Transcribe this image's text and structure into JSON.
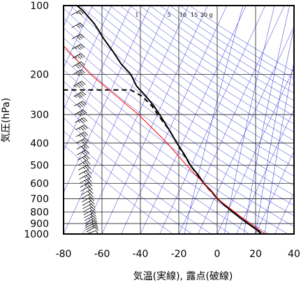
{
  "chart_data": {
    "type": "line",
    "xlabel": "気温(実線), 露点(破線)",
    "ylabel": "気圧(hPa)",
    "xlim": [
      -80,
      40
    ],
    "ylim": [
      1000,
      100
    ],
    "yscale": "log",
    "x_ticks": [
      "-80",
      "-60",
      "-40",
      "-20",
      "0",
      "20",
      "40"
    ],
    "x_tick_values": [
      -80,
      -60,
      -40,
      -20,
      0,
      20,
      40
    ],
    "y_ticks": [
      "100",
      "200",
      "300",
      "400",
      "500",
      "600",
      "700",
      "800",
      "900",
      "1000"
    ],
    "y_tick_values": [
      100,
      200,
      300,
      400,
      500,
      600,
      700,
      800,
      900,
      1000
    ],
    "mixing_ratio_labels": [
      "1",
      "5",
      "10",
      "15",
      "20",
      "g"
    ],
    "mixing_ratio_values": [
      1,
      5,
      10,
      15,
      20
    ],
    "grid": true,
    "series": [
      {
        "kind": "temperature",
        "style": "solid",
        "color": "#000000",
        "points": [
          [
            1000,
            23
          ],
          [
            975,
            22
          ],
          [
            950,
            20
          ],
          [
            925,
            18
          ],
          [
            900,
            16
          ],
          [
            850,
            12
          ],
          [
            800,
            8
          ],
          [
            750,
            4
          ],
          [
            700,
            0
          ],
          [
            650,
            -3
          ],
          [
            600,
            -7
          ],
          [
            550,
            -10
          ],
          [
            500,
            -14
          ],
          [
            450,
            -17
          ],
          [
            400,
            -21
          ],
          [
            350,
            -25
          ],
          [
            300,
            -30
          ],
          [
            275,
            -33
          ],
          [
            250,
            -37
          ],
          [
            225,
            -42
          ],
          [
            200,
            -45
          ],
          [
            180,
            -50
          ],
          [
            160,
            -54
          ],
          [
            140,
            -59
          ],
          [
            120,
            -64
          ],
          [
            105,
            -70
          ],
          [
            100,
            -73
          ]
        ]
      },
      {
        "kind": "dewpoint",
        "style": "dashed",
        "color": "#000000",
        "points": [
          [
            1000,
            23
          ],
          [
            950,
            20
          ],
          [
            900,
            16
          ],
          [
            850,
            12
          ],
          [
            800,
            8
          ],
          [
            700,
            0
          ],
          [
            600,
            -7
          ],
          [
            500,
            -14
          ],
          [
            400,
            -21
          ],
          [
            350,
            -25
          ],
          [
            300,
            -31
          ],
          [
            275,
            -34
          ],
          [
            250,
            -39
          ],
          [
            234,
            -45
          ],
          [
            234,
            -80
          ]
        ]
      },
      {
        "kind": "parcel",
        "style": "solid",
        "color": "#ff0000",
        "points": [
          [
            1000,
            25
          ],
          [
            900,
            17
          ],
          [
            800,
            9
          ],
          [
            700,
            0
          ],
          [
            600,
            -7
          ],
          [
            500,
            -16
          ],
          [
            400,
            -26
          ],
          [
            300,
            -41
          ],
          [
            200,
            -66
          ],
          [
            150,
            -80
          ]
        ]
      }
    ],
    "wind_barbs": [
      {
        "p": 1000,
        "speed": 10,
        "dir": 250
      },
      {
        "p": 980,
        "speed": 10,
        "dir": 240
      },
      {
        "p": 960,
        "speed": 15,
        "dir": 240
      },
      {
        "p": 940,
        "speed": 15,
        "dir": 240
      },
      {
        "p": 920,
        "speed": 15,
        "dir": 240
      },
      {
        "p": 900,
        "speed": 15,
        "dir": 240
      },
      {
        "p": 875,
        "speed": 15,
        "dir": 240
      },
      {
        "p": 850,
        "speed": 15,
        "dir": 240
      },
      {
        "p": 825,
        "speed": 15,
        "dir": 240
      },
      {
        "p": 800,
        "speed": 15,
        "dir": 240
      },
      {
        "p": 775,
        "speed": 20,
        "dir": 240
      },
      {
        "p": 750,
        "speed": 20,
        "dir": 240
      },
      {
        "p": 725,
        "speed": 20,
        "dir": 240
      },
      {
        "p": 700,
        "speed": 20,
        "dir": 240
      },
      {
        "p": 675,
        "speed": 20,
        "dir": 240
      },
      {
        "p": 650,
        "speed": 20,
        "dir": 240
      },
      {
        "p": 625,
        "speed": 25,
        "dir": 240
      },
      {
        "p": 600,
        "speed": 25,
        "dir": 240
      },
      {
        "p": 575,
        "speed": 25,
        "dir": 240
      },
      {
        "p": 550,
        "speed": 25,
        "dir": 240
      },
      {
        "p": 525,
        "speed": 25,
        "dir": 240
      },
      {
        "p": 500,
        "speed": 25,
        "dir": 240
      },
      {
        "p": 475,
        "speed": 30,
        "dir": 240
      },
      {
        "p": 450,
        "speed": 30,
        "dir": 240
      },
      {
        "p": 425,
        "speed": 30,
        "dir": 240
      },
      {
        "p": 400,
        "speed": 30,
        "dir": 240
      },
      {
        "p": 375,
        "speed": 35,
        "dir": 240
      },
      {
        "p": 350,
        "speed": 35,
        "dir": 240
      },
      {
        "p": 325,
        "speed": 35,
        "dir": 240
      },
      {
        "p": 300,
        "speed": 40,
        "dir": 240
      },
      {
        "p": 275,
        "speed": 40,
        "dir": 240
      },
      {
        "p": 250,
        "speed": 45,
        "dir": 240
      },
      {
        "p": 225,
        "speed": 45,
        "dir": 240
      },
      {
        "p": 200,
        "speed": 40,
        "dir": 240
      },
      {
        "p": 185,
        "speed": 40,
        "dir": 240
      },
      {
        "p": 170,
        "speed": 35,
        "dir": 240
      },
      {
        "p": 155,
        "speed": 35,
        "dir": 240
      },
      {
        "p": 140,
        "speed": 30,
        "dir": 240
      },
      {
        "p": 125,
        "speed": 30,
        "dir": 240
      },
      {
        "p": 110,
        "speed": 25,
        "dir": 240
      },
      {
        "p": 100,
        "speed": 20,
        "dir": 240
      }
    ],
    "colors": {
      "grid": "#000000",
      "background_lines": "#2b2bd6",
      "temperature": "#000000",
      "dewpoint": "#000000",
      "parcel": "#ff0000"
    }
  }
}
